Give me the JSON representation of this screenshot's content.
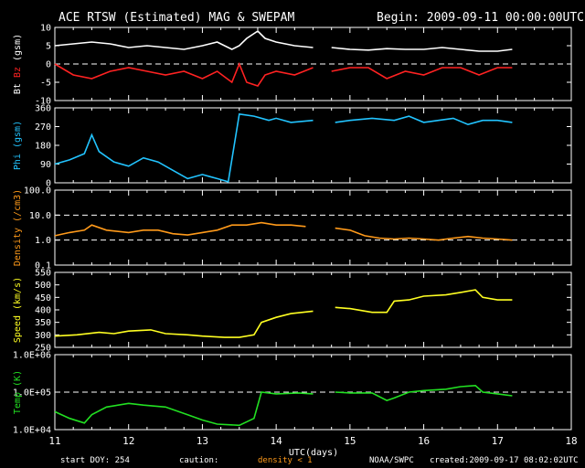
{
  "header": {
    "title": "ACE RTSW (Estimated) MAG & SWEPAM",
    "begin": "Begin: 2009-09-11 00:00:00UTC"
  },
  "footer": {
    "start_doy": "start DOY: 254",
    "caution": "caution:",
    "density_note": "density < 1",
    "source": "NOAA/SWPC",
    "created": "created:2009-09-17 08:02:02UTC"
  },
  "colors": {
    "bt": "#ffffff",
    "bz": "#ff2222",
    "phi": "#22c4ff",
    "density": "#ff9a1a",
    "speed": "#ffff22",
    "temp": "#22e022"
  },
  "chart_data": {
    "type": "line",
    "x_axis": {
      "label": "UTC(days)",
      "range": [
        11,
        18
      ],
      "ticks": [
        "11",
        "12",
        "13",
        "14",
        "15",
        "16",
        "17",
        "18"
      ]
    },
    "panels": [
      {
        "ylabel": [
          {
            "text": "Bt",
            "color": "#ffffff"
          },
          {
            "text": " Bz",
            "color": "#ff2222"
          },
          {
            "text": " (gsm)",
            "color": "#ffffff"
          }
        ],
        "scale": "linear",
        "ylim": [
          -10,
          10
        ],
        "ticks": [
          {
            "v": -10,
            "label": "-10"
          },
          {
            "v": -5,
            "label": "-5"
          },
          {
            "v": 0,
            "label": "0"
          },
          {
            "v": 5,
            "label": "5"
          },
          {
            "v": 10,
            "label": "10"
          }
        ],
        "ref": 0,
        "series": [
          {
            "color": "#ffffff",
            "x": [
              11.0,
              11.25,
              11.5,
              11.75,
              12.0,
              12.25,
              12.5,
              12.75,
              13.0,
              13.2,
              13.4,
              13.5,
              13.6,
              13.75,
              13.85,
              14.0,
              14.25,
              14.5,
              14.6,
              14.75,
              15.0,
              15.25,
              15.5,
              15.75,
              16.0,
              16.25,
              16.5,
              16.75,
              17.0,
              17.2
            ],
            "y": [
              5,
              5.5,
              6,
              5.5,
              4.5,
              5,
              4.5,
              4,
              5,
              6,
              4,
              5,
              7,
              9,
              7,
              6,
              5,
              4.5,
              null,
              4.5,
              4,
              3.8,
              4.2,
              4,
              4,
              4.5,
              4,
              3.5,
              3.5,
              4
            ]
          },
          {
            "color": "#ff2222",
            "x": [
              11.0,
              11.25,
              11.5,
              11.75,
              12.0,
              12.25,
              12.5,
              12.75,
              13.0,
              13.2,
              13.4,
              13.5,
              13.6,
              13.75,
              13.85,
              14.0,
              14.25,
              14.5,
              14.6,
              14.75,
              15.0,
              15.25,
              15.5,
              15.75,
              16.0,
              16.25,
              16.5,
              16.75,
              17.0,
              17.2
            ],
            "y": [
              0,
              -3,
              -4,
              -2,
              -1,
              -2,
              -3,
              -2,
              -4,
              -2,
              -5,
              0,
              -5,
              -6,
              -3,
              -2,
              -3,
              -1,
              null,
              -2,
              -1,
              -1,
              -4,
              -2,
              -3,
              -1,
              -1,
              -3,
              -1,
              -1
            ]
          }
        ]
      },
      {
        "ylabel": [
          {
            "text": "Phi (gsm)",
            "color": "#22c4ff"
          }
        ],
        "scale": "linear",
        "ylim": [
          0,
          360
        ],
        "ticks": [
          {
            "v": 0,
            "label": "0"
          },
          {
            "v": 90,
            "label": "90"
          },
          {
            "v": 180,
            "label": "180"
          },
          {
            "v": 270,
            "label": "270"
          },
          {
            "v": 360,
            "label": "360"
          }
        ],
        "series": [
          {
            "color": "#22c4ff",
            "x": [
              11.0,
              11.2,
              11.4,
              11.5,
              11.6,
              11.8,
              12.0,
              12.2,
              12.4,
              12.6,
              12.8,
              13.0,
              13.1,
              13.2,
              13.35,
              13.5,
              13.7,
              13.9,
              14.0,
              14.2,
              14.5,
              14.6,
              14.8,
              15.0,
              15.3,
              15.6,
              15.8,
              16.0,
              16.2,
              16.4,
              16.6,
              16.8,
              17.0,
              17.2
            ],
            "y": [
              90,
              110,
              140,
              230,
              150,
              100,
              80,
              120,
              100,
              60,
              20,
              40,
              30,
              20,
              5,
              330,
              320,
              300,
              310,
              290,
              300,
              null,
              290,
              300,
              310,
              300,
              320,
              290,
              300,
              310,
              280,
              300,
              300,
              290
            ]
          }
        ]
      },
      {
        "ylabel": [
          {
            "text": "Density (/cm3)",
            "color": "#ff9a1a"
          }
        ],
        "scale": "log",
        "ylim": [
          0.1,
          100
        ],
        "ticks": [
          {
            "v": 0.1,
            "label": "0.1"
          },
          {
            "v": 1,
            "label": "1.0"
          },
          {
            "v": 10,
            "label": "10.0"
          },
          {
            "v": 100,
            "label": "100.0"
          }
        ],
        "refs": [
          10,
          1
        ],
        "series": [
          {
            "color": "#ff9a1a",
            "x": [
              11.0,
              11.2,
              11.4,
              11.5,
              11.7,
              12.0,
              12.2,
              12.4,
              12.6,
              12.8,
              13.0,
              13.2,
              13.4,
              13.6,
              13.8,
              14.0,
              14.2,
              14.4,
              14.6,
              14.8,
              15.0,
              15.2,
              15.4,
              15.6,
              15.8,
              16.0,
              16.2,
              16.4,
              16.6,
              16.8,
              17.0,
              17.2
            ],
            "y": [
              1.5,
              2,
              2.5,
              4,
              2.5,
              2,
              2.5,
              2.5,
              1.8,
              1.6,
              2,
              2.5,
              4,
              4,
              5,
              4,
              4,
              3.5,
              null,
              3,
              2.5,
              1.5,
              1.2,
              1.1,
              1.2,
              1.1,
              1.0,
              1.2,
              1.4,
              1.2,
              1.1,
              1.0
            ]
          }
        ]
      },
      {
        "ylabel": [
          {
            "text": "Speed (km/s)",
            "color": "#ffff22"
          }
        ],
        "scale": "linear",
        "ylim": [
          250,
          550
        ],
        "ticks": [
          {
            "v": 250,
            "label": "250"
          },
          {
            "v": 300,
            "label": "300"
          },
          {
            "v": 350,
            "label": "350"
          },
          {
            "v": 400,
            "label": "400"
          },
          {
            "v": 450,
            "label": "450"
          },
          {
            "v": 500,
            "label": "500"
          },
          {
            "v": 550,
            "label": "550"
          }
        ],
        "series": [
          {
            "color": "#ffff22",
            "x": [
              11.0,
              11.3,
              11.6,
              11.8,
              12.0,
              12.3,
              12.5,
              12.8,
              13.0,
              13.3,
              13.5,
              13.7,
              13.8,
              14.0,
              14.2,
              14.5,
              14.6,
              14.8,
              15.0,
              15.3,
              15.5,
              15.6,
              15.8,
              16.0,
              16.3,
              16.5,
              16.7,
              16.8,
              17.0,
              17.2
            ],
            "y": [
              295,
              300,
              310,
              305,
              315,
              320,
              305,
              300,
              295,
              290,
              290,
              300,
              350,
              370,
              385,
              395,
              null,
              410,
              405,
              390,
              390,
              435,
              440,
              455,
              460,
              470,
              480,
              450,
              440,
              440
            ]
          }
        ]
      },
      {
        "ylabel": [
          {
            "text": "Temp (K)",
            "color": "#22e022"
          }
        ],
        "scale": "log",
        "ylim": [
          10000,
          1000000
        ],
        "ticks": [
          {
            "v": 10000,
            "label": "1.0E+04"
          },
          {
            "v": 100000,
            "label": "1.0E+05"
          },
          {
            "v": 1000000,
            "label": "1.0E+06"
          }
        ],
        "ref": 100000,
        "series": [
          {
            "color": "#22e022",
            "x": [
              11.0,
              11.2,
              11.4,
              11.5,
              11.7,
              12.0,
              12.2,
              12.5,
              12.8,
              13.0,
              13.2,
              13.5,
              13.7,
              13.8,
              14.0,
              14.3,
              14.5,
              14.6,
              14.8,
              15.0,
              15.3,
              15.5,
              15.6,
              15.8,
              16.0,
              16.3,
              16.5,
              16.7,
              16.8,
              17.0,
              17.2
            ],
            "y": [
              30000,
              20000,
              15000,
              25000,
              40000,
              50000,
              45000,
              40000,
              25000,
              18000,
              14000,
              13000,
              20000,
              100000,
              90000,
              95000,
              90000,
              null,
              100000,
              95000,
              95000,
              60000,
              70000,
              100000,
              110000,
              120000,
              140000,
              150000,
              100000,
              90000,
              80000
            ]
          }
        ]
      }
    ]
  }
}
